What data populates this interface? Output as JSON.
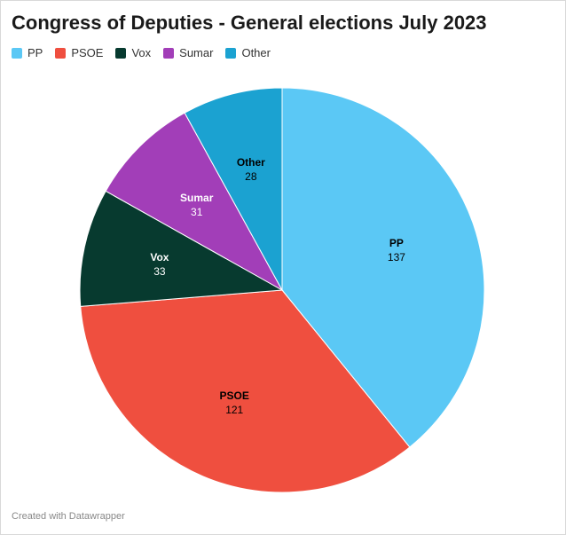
{
  "chart_data": {
    "type": "pie",
    "title": "Congress of Deputies - General elections July 2023",
    "legend_placement": "top-left",
    "slices": [
      {
        "label": "PP",
        "value": 137,
        "color": "#5bc8f5",
        "text_color": "#000000"
      },
      {
        "label": "PSOE",
        "value": 121,
        "color": "#ef4f3f",
        "text_color": "#000000"
      },
      {
        "label": "Vox",
        "value": 33,
        "color": "#073a2f",
        "text_color": "#ffffff"
      },
      {
        "label": "Sumar",
        "value": 31,
        "color": "#a23eb8",
        "text_color": "#ffffff"
      },
      {
        "label": "Other",
        "value": 28,
        "color": "#1ba2d1",
        "text_color": "#000000"
      }
    ]
  },
  "footer": {
    "credit": "Created with Datawrapper"
  }
}
